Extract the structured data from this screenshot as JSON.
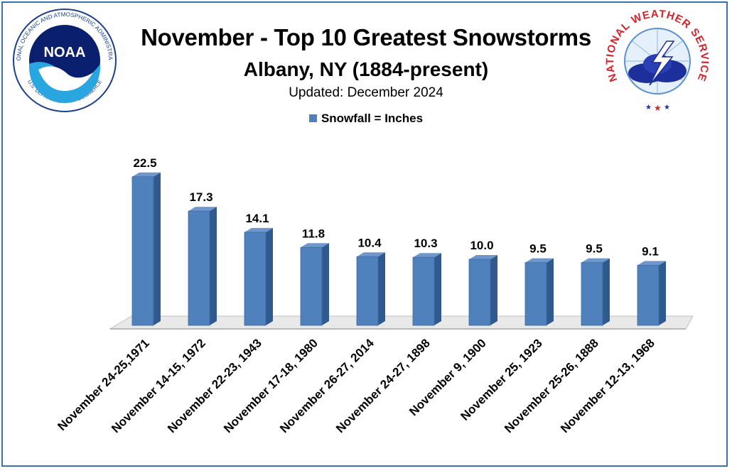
{
  "header": {
    "title": "November - Top 10 Greatest Snowstorms",
    "subtitle": "Albany, NY (1884-present)",
    "updated": "Updated: December 2024"
  },
  "logos": {
    "noaa": {
      "name": "NOAA",
      "ring_text": "NATIONAL OCEANIC AND ATMOSPHERIC ADMINISTRATION",
      "bottom_text": "U.S. DEPARTMENT OF COMMERCE"
    },
    "nws": {
      "ring_text": "NATIONAL WEATHER SERVICE"
    }
  },
  "colors": {
    "bar": "#4f81bd",
    "bar_side": "#2f5a8f",
    "bar_top": "#6f97cc",
    "frame": "#3d6fb3"
  },
  "chart_data": {
    "type": "bar",
    "title": "November - Top 10 Greatest Snowstorms",
    "legend": "Snowfall = Inches",
    "legend_position": "top-center",
    "grid": false,
    "categories": [
      "November 24-25,1971",
      "November 14-15, 1972",
      "November 22-23, 1943",
      "November 17-18, 1980",
      "November 26-27, 2014",
      "November 24-27, 1898",
      "November 9, 1900",
      "November 25, 1923",
      "November 25-26, 1888",
      "November 12-13, 1968"
    ],
    "series": [
      {
        "name": "Snowfall = Inches",
        "values": [
          22.5,
          17.3,
          14.1,
          11.8,
          10.4,
          10.3,
          10.0,
          9.5,
          9.5,
          9.1
        ]
      }
    ],
    "labels": [
      "22.5",
      "17.3",
      "14.1",
      "11.8",
      "10.4",
      "10.3",
      "10.0",
      "9.5",
      "9.5",
      "9.1"
    ],
    "ylim": [
      0,
      25
    ]
  }
}
